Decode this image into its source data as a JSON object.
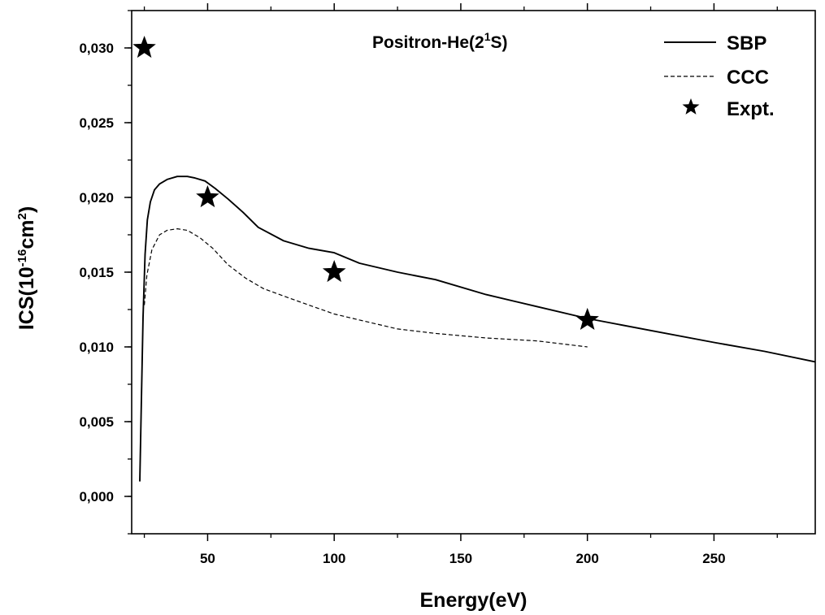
{
  "chart_data": {
    "type": "line",
    "title": "Positron-He(2",
    "title_superscript": "1",
    "title_suffix": "S)",
    "xlabel": "Energy(eV)",
    "ylabel": "ICS(10",
    "ylabel_superscript": "-16",
    "ylabel_suffix": "cm",
    "ylabel_superscript2": "2",
    "ylabel_end": ")",
    "xlim": [
      20,
      290
    ],
    "ylim": [
      -0.0025,
      0.0325
    ],
    "x_ticks": [
      50,
      100,
      150,
      200,
      250
    ],
    "x_tick_labels": [
      "50",
      "100",
      "150",
      "200",
      "250"
    ],
    "y_ticks": [
      0.0,
      0.005,
      0.01,
      0.015,
      0.02,
      0.025,
      0.03
    ],
    "y_tick_labels": [
      "0,000",
      "0,005",
      "0,010",
      "0,015",
      "0,020",
      "0,025",
      "0,030"
    ],
    "legend_position": "top-right",
    "series": [
      {
        "name": "SBP",
        "style": "solid",
        "x": [
          23.2,
          23.8,
          24.5,
          25.3,
          26.2,
          27.4,
          29,
          31,
          34,
          38,
          42,
          45,
          49,
          53,
          58,
          64,
          70,
          80,
          90,
          100,
          110,
          125,
          140,
          160,
          180,
          200,
          225,
          250,
          270,
          290
        ],
        "y": [
          0.001,
          0.006,
          0.012,
          0.0162,
          0.0185,
          0.0197,
          0.0205,
          0.0209,
          0.0212,
          0.0214,
          0.0214,
          0.0213,
          0.0211,
          0.0206,
          0.0199,
          0.019,
          0.018,
          0.0171,
          0.0166,
          0.0163,
          0.0156,
          0.015,
          0.0145,
          0.0135,
          0.0127,
          0.0119,
          0.0111,
          0.0103,
          0.0097,
          0.009
        ]
      },
      {
        "name": "CCC",
        "style": "dashed",
        "x": [
          25,
          26,
          28,
          31,
          34,
          38,
          42,
          47,
          52,
          58,
          65,
          72,
          80,
          90,
          100,
          110,
          125,
          140,
          160,
          180,
          200
        ],
        "y": [
          0.0128,
          0.0148,
          0.0165,
          0.0175,
          0.0178,
          0.0179,
          0.0178,
          0.0173,
          0.0166,
          0.0155,
          0.0146,
          0.0139,
          0.0134,
          0.0128,
          0.0122,
          0.0118,
          0.0112,
          0.0109,
          0.0106,
          0.0104,
          0.01
        ]
      },
      {
        "name": "Expt.",
        "style": "star",
        "x": [
          25,
          50,
          100,
          200
        ],
        "y": [
          0.03,
          0.02,
          0.015,
          0.0118
        ]
      }
    ]
  }
}
